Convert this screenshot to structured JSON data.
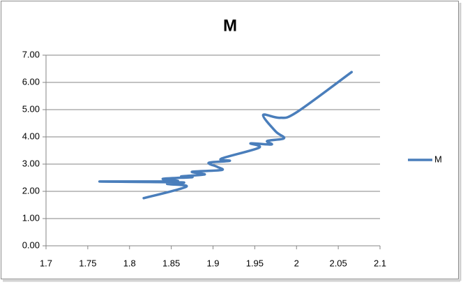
{
  "chart_data": {
    "type": "line",
    "title": "M",
    "smooth": true,
    "grid": true,
    "legend": "right",
    "xlim": [
      1.7,
      2.1
    ],
    "xticks": [
      1.7,
      1.75,
      1.8,
      1.85,
      1.9,
      1.95,
      2,
      2.05,
      2.1
    ],
    "ylim": [
      0,
      7
    ],
    "yticks": [
      {
        "value": 0,
        "label": "0.00"
      },
      {
        "value": 1,
        "label": "1.00"
      },
      {
        "value": 2,
        "label": "2.00"
      },
      {
        "value": 3,
        "label": "3.00"
      },
      {
        "value": 4,
        "label": "4.00"
      },
      {
        "value": 5,
        "label": "5.00"
      },
      {
        "value": 6,
        "label": "6.00"
      },
      {
        "value": 7,
        "label": "7.00"
      }
    ],
    "series": [
      {
        "name": "M",
        "color": "#4a7ebb",
        "x": [
          1.817,
          1.868,
          1.845,
          1.862,
          1.764,
          1.855,
          1.84,
          1.875,
          1.862,
          1.89,
          1.875,
          1.91,
          1.905,
          1.895,
          1.92,
          1.91,
          1.955,
          1.945,
          1.97,
          1.965,
          1.985,
          1.975,
          1.96,
          1.98,
          2.0,
          2.066
        ],
        "values": [
          1.75,
          2.17,
          2.27,
          2.33,
          2.36,
          2.37,
          2.46,
          2.52,
          2.55,
          2.62,
          2.72,
          2.78,
          2.9,
          3.05,
          3.12,
          3.2,
          3.6,
          3.76,
          3.72,
          3.85,
          3.95,
          4.2,
          4.8,
          4.7,
          4.9,
          6.38
        ]
      }
    ]
  }
}
